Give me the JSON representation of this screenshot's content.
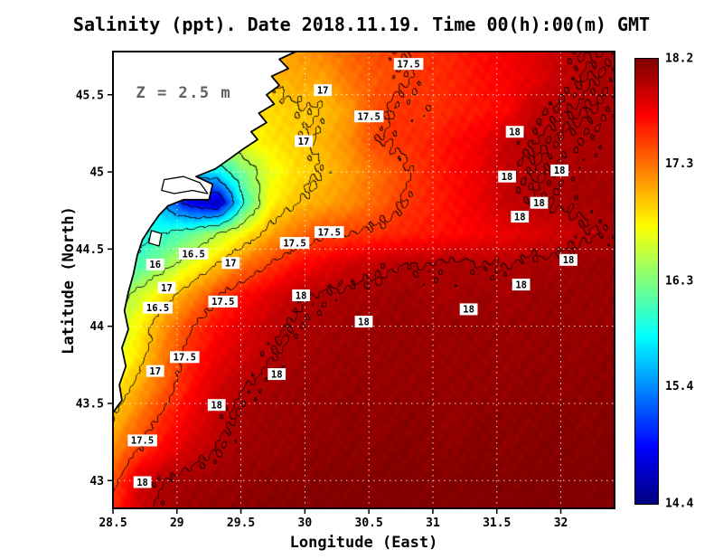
{
  "title": "Salinity (ppt). Date 2018.11.19. Time 00(h):00(m) GMT",
  "annotation": {
    "text": "Z = 2.5 m",
    "lon": 28.68,
    "lat": 45.55
  },
  "axes": {
    "x_label": "Longitude (East)",
    "y_label": "Latitude (North)",
    "x_ticks": [
      28.5,
      29,
      29.5,
      30,
      30.5,
      31,
      31.5,
      32
    ],
    "x_tick_labels": [
      "28.5",
      "29",
      "29.5",
      "30",
      "30.5",
      "31",
      "31.5",
      "32"
    ],
    "y_ticks": [
      43,
      43.5,
      44,
      44.5,
      45,
      45.5
    ],
    "y_tick_labels": [
      "43",
      "43.5",
      "44",
      "44.5",
      "45",
      "45.5"
    ]
  },
  "colorbar": {
    "vmin": 14.4,
    "vmax": 18.2,
    "tick_labels": [
      "18.2",
      "17.3",
      "16.3",
      "15.4",
      "14.4"
    ],
    "colormap": "jet"
  },
  "style": {
    "land_color": "#ffffff",
    "coast_color": "#000000",
    "grid_color": "rgba(255,255,255,0.85)",
    "frame_color": "#000000",
    "annotation_color": "#5f5f5f",
    "contour_label_box": "#ffffff",
    "contour_label_text": "#000000"
  },
  "chart_data": {
    "type": "heatmap",
    "variable": "Salinity (ppt)",
    "title": "Salinity (ppt). Date 2018.11.19. Time 00(h):00(m) GMT",
    "xlabel": "Longitude (East)",
    "ylabel": "Latitude (North)",
    "lon_range": [
      28.5,
      32.42
    ],
    "lat_range": [
      42.82,
      45.78
    ],
    "value_range": [
      14.4,
      18.2
    ],
    "contour_interval": 0.5,
    "texture_noise_amp": 0.055,
    "grid": {
      "lon_start": 28.5,
      "dlon": 0.2053,
      "nx": 20,
      "lat_top": 45.8,
      "dlat": 0.2,
      "ny": 16,
      "order": "rows north to south, columns west to east",
      "values": [
        [
          16.8,
          16.8,
          16.9,
          16.9,
          17.0,
          17.0,
          17.1,
          17.15,
          17.25,
          17.35,
          17.45,
          17.5,
          17.55,
          17.6,
          17.7,
          17.75,
          17.85,
          17.95,
          18.0,
          18.02
        ],
        [
          16.7,
          16.75,
          16.8,
          16.85,
          16.9,
          16.95,
          17.0,
          17.1,
          17.12,
          17.3,
          17.4,
          17.48,
          17.55,
          17.6,
          17.68,
          17.75,
          17.82,
          17.95,
          18.0,
          18.02
        ],
        [
          16.6,
          16.65,
          16.7,
          16.75,
          16.8,
          16.85,
          16.9,
          16.98,
          17.0,
          17.15,
          17.45,
          17.55,
          17.52,
          17.6,
          17.65,
          17.72,
          17.95,
          18.0,
          18.0,
          18.02
        ],
        [
          16.4,
          16.45,
          16.5,
          16.6,
          16.7,
          16.75,
          16.85,
          16.95,
          17.05,
          17.2,
          17.48,
          17.55,
          17.6,
          17.7,
          17.78,
          17.95,
          18.0,
          18.02,
          18.02,
          18.05
        ],
        [
          16.2,
          16.0,
          15.8,
          15.6,
          15.8,
          16.3,
          16.7,
          16.9,
          17.0,
          17.15,
          17.3,
          17.45,
          17.6,
          17.7,
          17.8,
          17.95,
          18.0,
          18.02,
          18.05,
          18.05
        ],
        [
          16.0,
          15.8,
          15.4,
          14.8,
          14.6,
          16.0,
          16.8,
          17.0,
          17.1,
          17.2,
          17.35,
          17.5,
          17.6,
          17.7,
          17.8,
          17.95,
          18.0,
          18.02,
          18.05,
          18.08
        ],
        [
          15.8,
          15.9,
          16.0,
          16.2,
          16.5,
          16.8,
          17.1,
          17.3,
          17.45,
          17.5,
          17.55,
          17.6,
          17.65,
          17.7,
          17.75,
          17.8,
          17.85,
          17.9,
          17.98,
          18.02
        ],
        [
          15.9,
          16.1,
          16.4,
          16.7,
          17.0,
          17.3,
          17.5,
          17.7,
          17.8,
          17.9,
          17.95,
          18.0,
          18.0,
          18.05,
          18.0,
          18.0,
          18.05,
          18.05,
          18.1,
          18.1
        ],
        [
          16.3,
          16.6,
          16.9,
          17.2,
          17.5,
          17.7,
          17.85,
          17.98,
          18.02,
          18.05,
          18.05,
          18.1,
          18.05,
          18.05,
          18.1,
          18.05,
          18.1,
          18.1,
          18.1,
          18.1
        ],
        [
          16.5,
          16.8,
          17.2,
          17.5,
          17.7,
          17.85,
          17.95,
          18.02,
          18.05,
          18.08,
          18.1,
          18.1,
          18.1,
          18.1,
          18.1,
          18.1,
          18.1,
          18.12,
          18.1,
          18.12
        ],
        [
          16.6,
          16.9,
          17.3,
          17.6,
          17.8,
          17.9,
          18.0,
          18.05,
          18.08,
          18.1,
          18.1,
          18.12,
          18.1,
          18.1,
          18.12,
          18.1,
          18.12,
          18.12,
          18.12,
          18.15
        ],
        [
          16.8,
          17.1,
          17.4,
          17.7,
          17.9,
          18.0,
          18.05,
          18.1,
          18.1,
          18.12,
          18.12,
          18.12,
          18.12,
          18.12,
          18.12,
          18.12,
          18.15,
          18.12,
          18.15,
          18.15
        ],
        [
          17.0,
          17.3,
          17.6,
          17.8,
          17.95,
          18.05,
          18.1,
          18.1,
          18.12,
          18.15,
          18.12,
          18.15,
          18.15,
          18.12,
          18.15,
          18.15,
          18.15,
          18.18,
          18.15,
          18.18
        ],
        [
          17.2,
          17.5,
          17.75,
          17.9,
          18.0,
          18.08,
          18.1,
          18.12,
          18.15,
          18.15,
          18.15,
          18.18,
          18.15,
          18.15,
          18.18,
          18.15,
          18.18,
          18.18,
          18.18,
          18.2
        ],
        [
          17.4,
          17.9,
          18.02,
          18.08,
          18.1,
          18.12,
          18.15,
          18.15,
          18.18,
          18.18,
          18.18,
          18.2,
          18.18,
          18.18,
          18.2,
          18.18,
          18.2,
          18.2,
          18.2,
          18.2
        ],
        [
          17.6,
          17.9,
          18.05,
          18.1,
          18.12,
          18.15,
          18.18,
          18.18,
          18.2,
          18.2,
          18.2,
          18.2,
          18.2,
          18.2,
          18.2,
          18.2,
          18.2,
          18.2,
          18.2,
          18.2
        ]
      ]
    },
    "contour_labels": [
      {
        "v": "17.5",
        "lon": 30.81,
        "lat": 45.7
      },
      {
        "v": "17",
        "lon": 30.14,
        "lat": 45.53
      },
      {
        "v": "17.5",
        "lon": 30.5,
        "lat": 45.36
      },
      {
        "v": "17",
        "lon": 29.99,
        "lat": 45.2
      },
      {
        "v": "18",
        "lon": 31.64,
        "lat": 45.26
      },
      {
        "v": "18",
        "lon": 31.99,
        "lat": 45.01
      },
      {
        "v": "18",
        "lon": 31.58,
        "lat": 44.97
      },
      {
        "v": "18",
        "lon": 31.83,
        "lat": 44.8
      },
      {
        "v": "18",
        "lon": 31.68,
        "lat": 44.71
      },
      {
        "v": "17.5",
        "lon": 30.19,
        "lat": 44.61
      },
      {
        "v": "17.5",
        "lon": 29.92,
        "lat": 44.54
      },
      {
        "v": "16.5",
        "lon": 29.13,
        "lat": 44.47
      },
      {
        "v": "17",
        "lon": 29.42,
        "lat": 44.41
      },
      {
        "v": "16",
        "lon": 28.83,
        "lat": 44.4
      },
      {
        "v": "18",
        "lon": 32.06,
        "lat": 44.43
      },
      {
        "v": "17",
        "lon": 28.92,
        "lat": 44.25
      },
      {
        "v": "16.5",
        "lon": 28.85,
        "lat": 44.12
      },
      {
        "v": "17.5",
        "lon": 29.36,
        "lat": 44.16
      },
      {
        "v": "18",
        "lon": 31.69,
        "lat": 44.27
      },
      {
        "v": "18",
        "lon": 29.97,
        "lat": 44.2
      },
      {
        "v": "18",
        "lon": 31.28,
        "lat": 44.11
      },
      {
        "v": "18",
        "lon": 30.46,
        "lat": 44.03
      },
      {
        "v": "17.5",
        "lon": 29.06,
        "lat": 43.8
      },
      {
        "v": "17",
        "lon": 28.83,
        "lat": 43.71
      },
      {
        "v": "18",
        "lon": 29.78,
        "lat": 43.69
      },
      {
        "v": "18",
        "lon": 29.31,
        "lat": 43.49
      },
      {
        "v": "17.5",
        "lon": 28.73,
        "lat": 43.26
      },
      {
        "v": "18",
        "lon": 28.73,
        "lat": 42.99
      }
    ],
    "coastline": [
      [
        29.93,
        45.78
      ],
      [
        29.8,
        45.73
      ],
      [
        29.87,
        45.67
      ],
      [
        29.74,
        45.62
      ],
      [
        29.8,
        45.56
      ],
      [
        29.7,
        45.5
      ],
      [
        29.76,
        45.44
      ],
      [
        29.64,
        45.38
      ],
      [
        29.7,
        45.32
      ],
      [
        29.58,
        45.26
      ],
      [
        29.63,
        45.21
      ],
      [
        29.52,
        45.15
      ],
      [
        29.42,
        45.09
      ],
      [
        29.3,
        45.02
      ],
      [
        29.15,
        44.97
      ],
      [
        29.28,
        44.92
      ],
      [
        29.25,
        44.82
      ],
      [
        29.05,
        44.82
      ],
      [
        28.93,
        44.78
      ],
      [
        28.86,
        44.72
      ],
      [
        28.8,
        44.65
      ],
      [
        28.73,
        44.56
      ],
      [
        28.69,
        44.46
      ],
      [
        28.66,
        44.34
      ],
      [
        28.62,
        44.22
      ],
      [
        28.59,
        44.1
      ],
      [
        28.62,
        43.98
      ],
      [
        28.57,
        43.86
      ],
      [
        28.6,
        43.74
      ],
      [
        28.55,
        43.62
      ],
      [
        28.57,
        43.52
      ],
      [
        28.5,
        43.44
      ]
    ],
    "islands": [
      [
        [
          28.9,
          44.95
        ],
        [
          29.05,
          44.97
        ],
        [
          29.18,
          44.93
        ],
        [
          29.24,
          44.86
        ],
        [
          29.12,
          44.88
        ],
        [
          28.98,
          44.86
        ],
        [
          28.88,
          44.88
        ]
      ],
      [
        [
          28.8,
          44.62
        ],
        [
          28.88,
          44.6
        ],
        [
          28.86,
          44.52
        ],
        [
          28.78,
          44.54
        ]
      ]
    ]
  }
}
